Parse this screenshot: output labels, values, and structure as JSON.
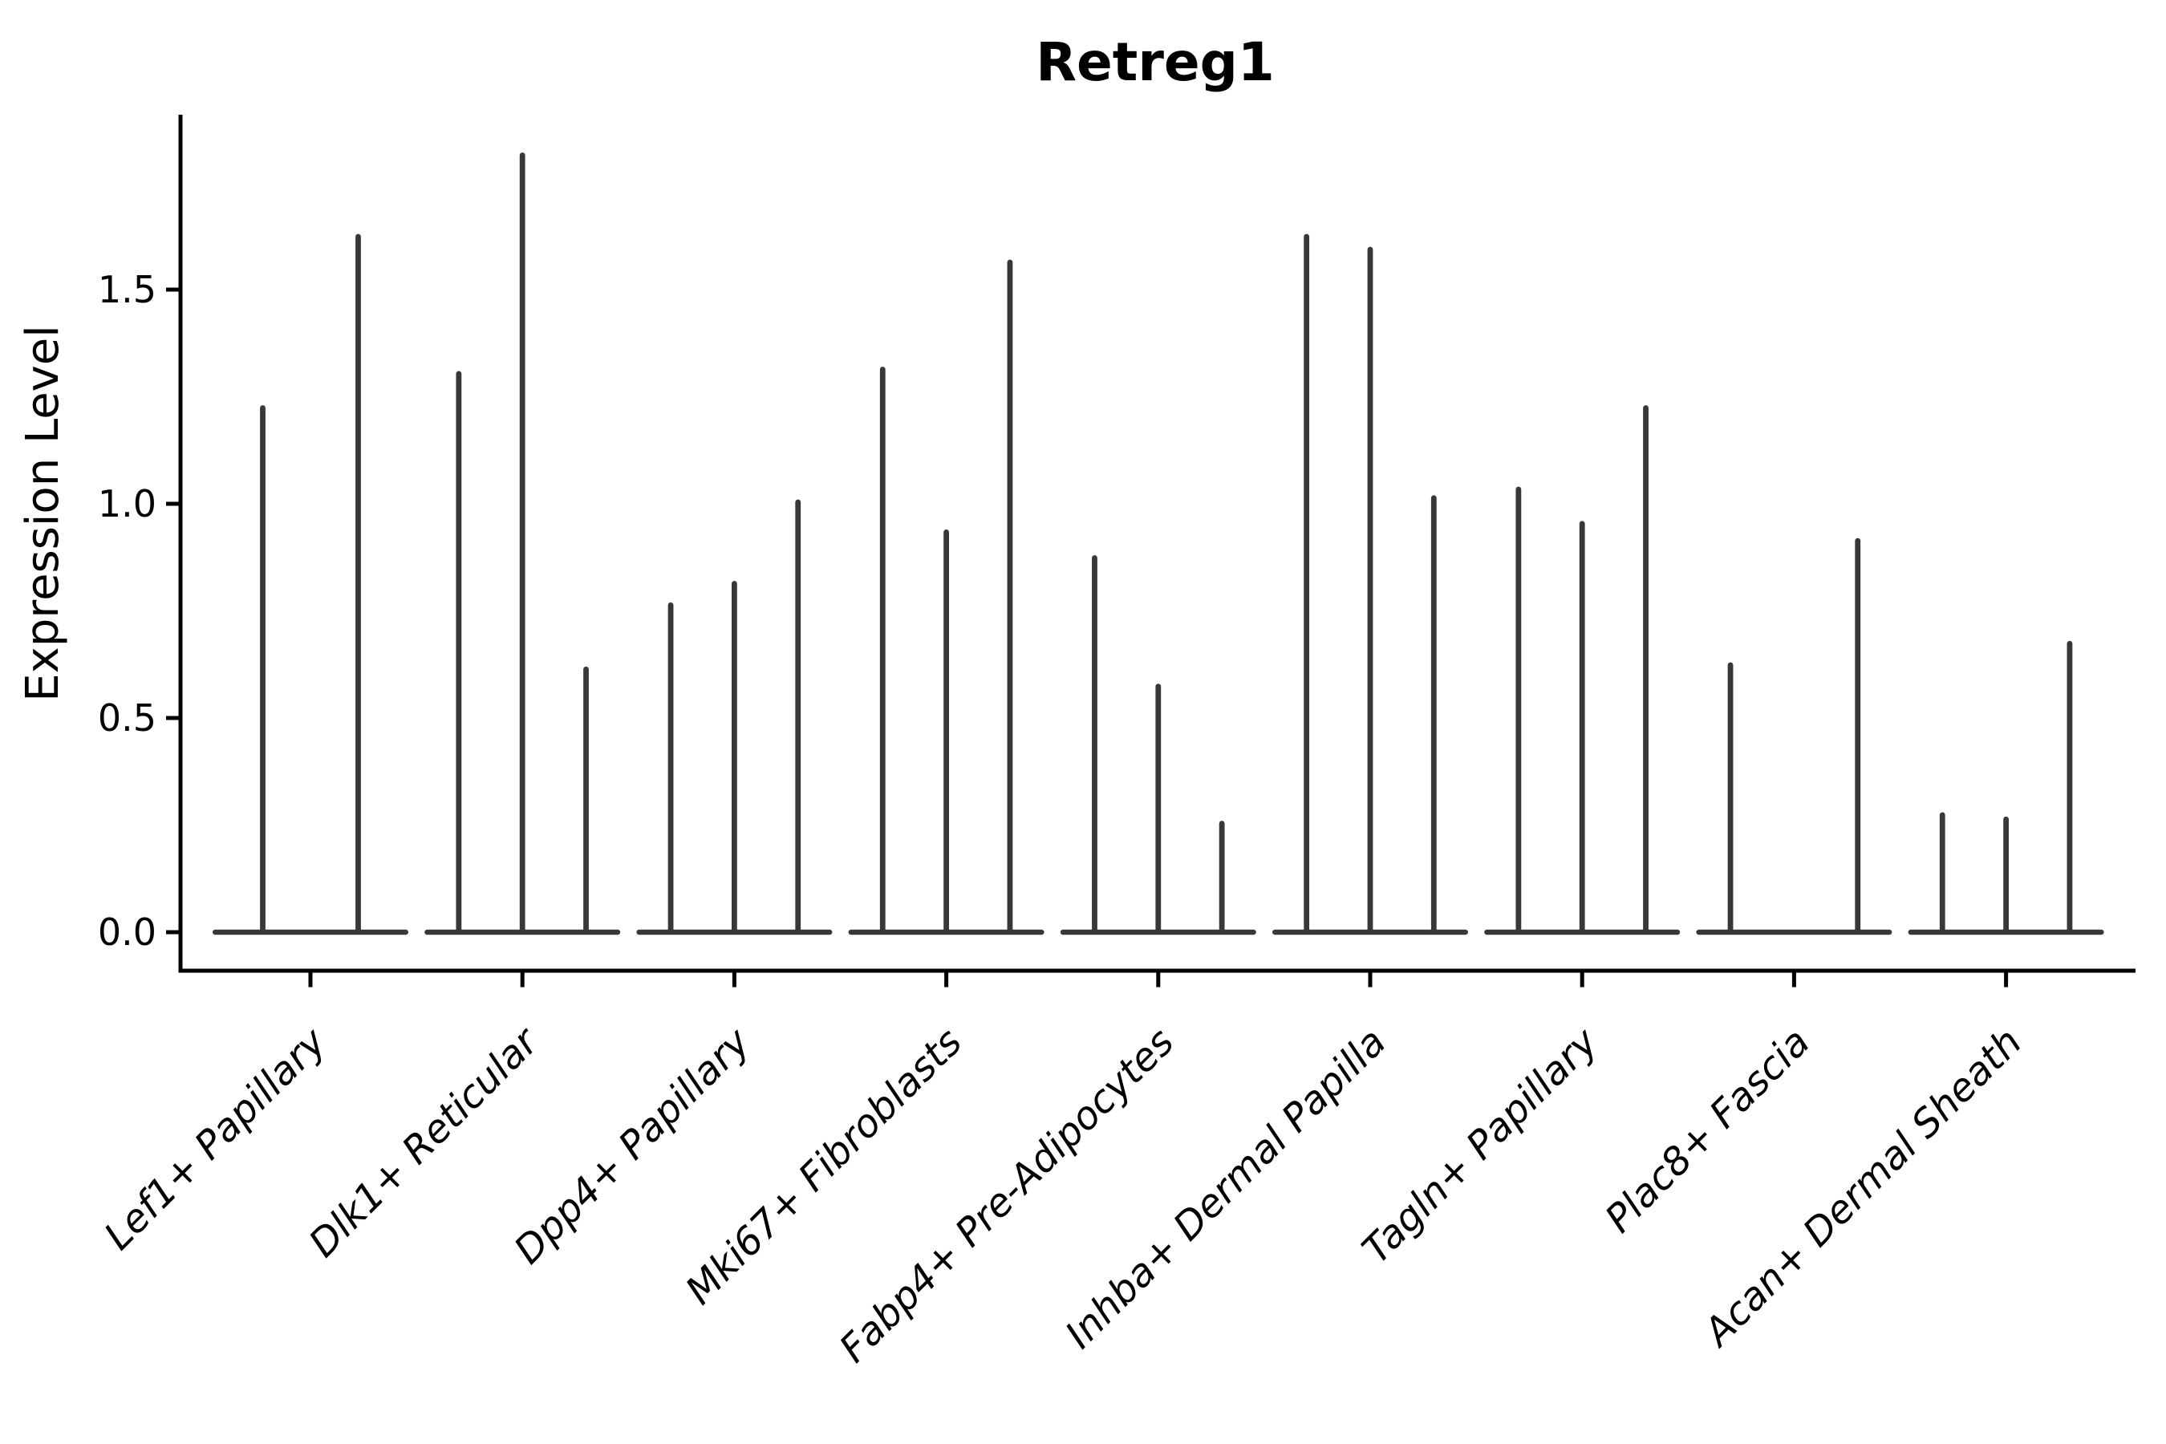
{
  "chart_data": {
    "type": "violin",
    "title": "Retreg1",
    "xlabel": "",
    "ylabel": "Expression Level",
    "ytick_labels": [
      "0.0",
      "0.5",
      "1.0",
      "1.5"
    ],
    "yticks": [
      0.0,
      0.5,
      1.0,
      1.5
    ],
    "ylim": [
      -0.09,
      1.91
    ],
    "grid": false,
    "legend_position": "none",
    "x_tick_label_rotation_deg": 45,
    "x_tick_label_style": "italic",
    "colors": {
      "violin_fill": "#383838",
      "axis": "#000000",
      "text": "#000000",
      "background": "#ffffff"
    },
    "categories": [
      "Lef1+ Papillary",
      "Dlk1+ Reticular",
      "Dpp4+ Papillary",
      "Mki67+ Fibroblasts",
      "Fabp4+ Pre-Adipocytes",
      "Inhba+ Dermal Papilla",
      "Tagln+ Papillary",
      "Plac8+ Fascia",
      "Acan+ Dermal Sheath"
    ],
    "description": "Violin plot; each category holds dodged violins that are flat at 0 expression with a thin spike rising to the maximum expression value. A value of 0 means a flat violin with no spike.",
    "groups": [
      {
        "label": "Lef1+ Papillary",
        "violin_max_values": [
          1.23,
          1.63
        ]
      },
      {
        "label": "Dlk1+ Reticular",
        "violin_max_values": [
          1.31,
          1.82,
          0.62
        ]
      },
      {
        "label": "Dpp4+ Papillary",
        "violin_max_values": [
          0.77,
          0.82,
          1.01
        ]
      },
      {
        "label": "Mki67+ Fibroblasts",
        "violin_max_values": [
          1.32,
          0.94,
          1.57
        ]
      },
      {
        "label": "Fabp4+ Pre-Adipocytes",
        "violin_max_values": [
          0.88,
          0.58,
          0.26
        ]
      },
      {
        "label": "Inhba+ Dermal Papilla",
        "violin_max_values": [
          1.63,
          1.6,
          1.02
        ]
      },
      {
        "label": "Tagln+ Papillary",
        "violin_max_values": [
          1.04,
          0.96,
          1.23
        ]
      },
      {
        "label": "Plac8+ Fascia",
        "violin_max_values": [
          0.63,
          0,
          0.92
        ]
      },
      {
        "label": "Acan+ Dermal Sheath",
        "violin_max_values": [
          0.28,
          0.27,
          0.68
        ]
      }
    ]
  }
}
